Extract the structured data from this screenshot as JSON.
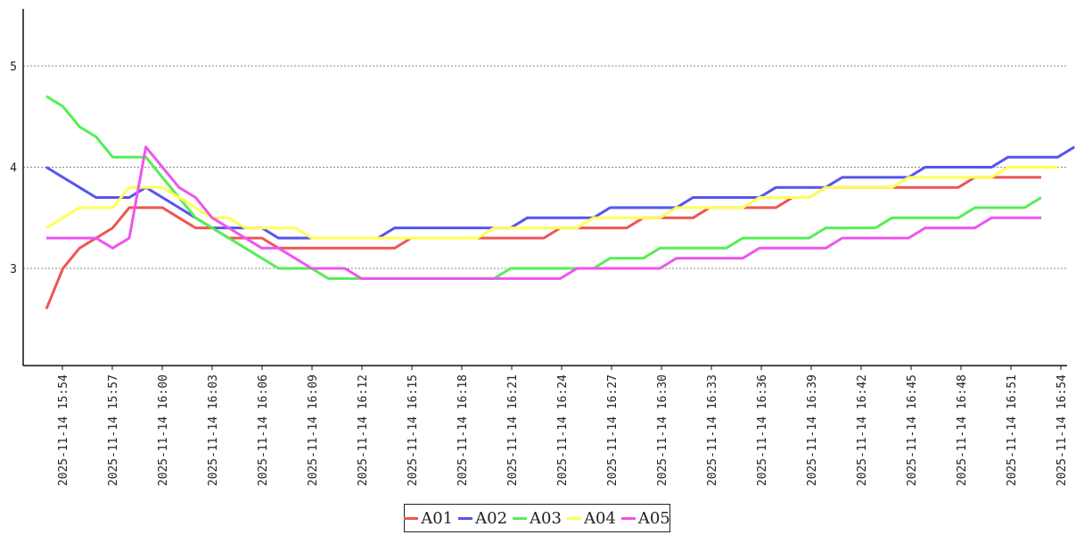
{
  "chart_data": {
    "type": "line",
    "title": "",
    "xlabel": "",
    "ylabel": "",
    "ylim": [
      2.0,
      5.6
    ],
    "yticks": [
      3,
      4,
      5
    ],
    "grid": "horizontal-dotted",
    "legend_position": "bottom-center",
    "xtick_labels": [
      "2025-11-14 15:54",
      "2025-11-14 15:57",
      "2025-11-14 16:00",
      "2025-11-14 16:03",
      "2025-11-14 16:06",
      "2025-11-14 16:09",
      "2025-11-14 16:12",
      "2025-11-14 16:15",
      "2025-11-14 16:18",
      "2025-11-14 16:21",
      "2025-11-14 16:24",
      "2025-11-14 16:27",
      "2025-11-14 16:30",
      "2025-11-14 16:33",
      "2025-11-14 16:36",
      "2025-11-14 16:39",
      "2025-11-14 16:42",
      "2025-11-14 16:45",
      "2025-11-14 16:48",
      "2025-11-14 16:51",
      "2025-11-14 16:54"
    ],
    "x_start": "2025-11-14 15:53",
    "x_step_minutes": 1,
    "series": [
      {
        "name": "A01",
        "color": "#ee5555",
        "values": [
          2.6,
          3.0,
          3.2,
          3.3,
          3.4,
          3.6,
          3.6,
          3.6,
          3.5,
          3.4,
          3.4,
          3.3,
          3.3,
          3.3,
          3.2,
          3.2,
          3.2,
          3.2,
          3.2,
          3.2,
          3.2,
          3.2,
          3.3,
          3.3,
          3.3,
          3.3,
          3.3,
          3.3,
          3.3,
          3.3,
          3.3,
          3.4,
          3.4,
          3.4,
          3.4,
          3.4,
          3.5,
          3.5,
          3.5,
          3.5,
          3.6,
          3.6,
          3.6,
          3.6,
          3.6,
          3.7,
          3.7,
          3.8,
          3.8,
          3.8,
          3.8,
          3.8,
          3.8,
          3.8,
          3.8,
          3.8,
          3.9,
          3.9,
          3.9,
          3.9,
          3.9
        ]
      },
      {
        "name": "A02",
        "color": "#5555ee",
        "values": [
          4.0,
          3.9,
          3.8,
          3.7,
          3.7,
          3.7,
          3.8,
          3.7,
          3.6,
          3.5,
          3.4,
          3.4,
          3.4,
          3.4,
          3.3,
          3.3,
          3.3,
          3.3,
          3.3,
          3.3,
          3.3,
          3.4,
          3.4,
          3.4,
          3.4,
          3.4,
          3.4,
          3.4,
          3.4,
          3.5,
          3.5,
          3.5,
          3.5,
          3.5,
          3.6,
          3.6,
          3.6,
          3.6,
          3.6,
          3.7,
          3.7,
          3.7,
          3.7,
          3.7,
          3.8,
          3.8,
          3.8,
          3.8,
          3.9,
          3.9,
          3.9,
          3.9,
          3.9,
          4.0,
          4.0,
          4.0,
          4.0,
          4.0,
          4.1,
          4.1,
          4.1,
          4.1,
          4.2
        ]
      },
      {
        "name": "A03",
        "color": "#55ee55",
        "values": [
          4.7,
          4.6,
          4.4,
          4.3,
          4.1,
          4.1,
          4.1,
          3.9,
          3.7,
          3.5,
          3.4,
          3.3,
          3.2,
          3.1,
          3.0,
          3.0,
          3.0,
          2.9,
          2.9,
          2.9,
          2.9,
          2.9,
          2.9,
          2.9,
          2.9,
          2.9,
          2.9,
          2.9,
          3.0,
          3.0,
          3.0,
          3.0,
          3.0,
          3.0,
          3.1,
          3.1,
          3.1,
          3.2,
          3.2,
          3.2,
          3.2,
          3.2,
          3.3,
          3.3,
          3.3,
          3.3,
          3.3,
          3.4,
          3.4,
          3.4,
          3.4,
          3.5,
          3.5,
          3.5,
          3.5,
          3.5,
          3.6,
          3.6,
          3.6,
          3.6,
          3.7
        ]
      },
      {
        "name": "A04",
        "color": "#ffff55",
        "values": [
          3.4,
          3.5,
          3.6,
          3.6,
          3.6,
          3.8,
          3.8,
          3.8,
          3.7,
          3.6,
          3.5,
          3.5,
          3.4,
          3.4,
          3.4,
          3.4,
          3.3,
          3.3,
          3.3,
          3.3,
          3.3,
          3.3,
          3.3,
          3.3,
          3.3,
          3.3,
          3.3,
          3.4,
          3.4,
          3.4,
          3.4,
          3.4,
          3.4,
          3.5,
          3.5,
          3.5,
          3.5,
          3.5,
          3.6,
          3.6,
          3.6,
          3.6,
          3.6,
          3.7,
          3.7,
          3.7,
          3.7,
          3.8,
          3.8,
          3.8,
          3.8,
          3.8,
          3.9,
          3.9,
          3.9,
          3.9,
          3.9,
          3.9,
          4.0,
          4.0,
          4.0,
          4.0
        ]
      },
      {
        "name": "A05",
        "color": "#ee55ee",
        "values": [
          3.3,
          3.3,
          3.3,
          3.3,
          3.2,
          3.3,
          4.2,
          4.0,
          3.8,
          3.7,
          3.5,
          3.4,
          3.3,
          3.2,
          3.2,
          3.1,
          3.0,
          3.0,
          3.0,
          2.9,
          2.9,
          2.9,
          2.9,
          2.9,
          2.9,
          2.9,
          2.9,
          2.9,
          2.9,
          2.9,
          2.9,
          2.9,
          3.0,
          3.0,
          3.0,
          3.0,
          3.0,
          3.0,
          3.1,
          3.1,
          3.1,
          3.1,
          3.1,
          3.2,
          3.2,
          3.2,
          3.2,
          3.2,
          3.3,
          3.3,
          3.3,
          3.3,
          3.3,
          3.4,
          3.4,
          3.4,
          3.4,
          3.5,
          3.5,
          3.5,
          3.5
        ]
      }
    ]
  }
}
